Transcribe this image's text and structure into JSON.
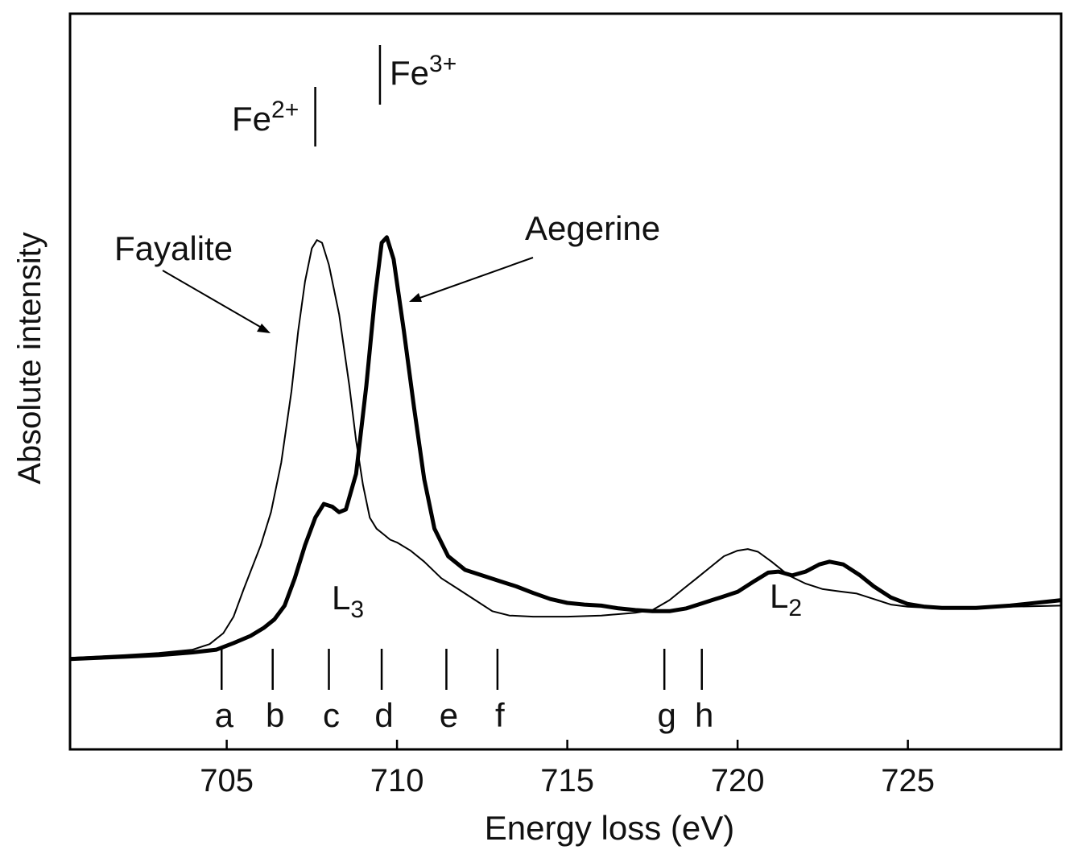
{
  "chart_data": {
    "type": "line",
    "title": "",
    "xlabel": "Energy loss (eV)",
    "ylabel": "Absolute intensity",
    "xlim": [
      700.4,
      729.5
    ],
    "ylim": [
      0,
      1.18
    ],
    "xticks": [
      705,
      710,
      715,
      720,
      725
    ],
    "y_ticks_shown": false,
    "grid": false,
    "series": [
      {
        "name": "Fayalite",
        "line": "thin",
        "points": [
          [
            700.4,
            0.165
          ],
          [
            702,
            0.17
          ],
          [
            703,
            0.174
          ],
          [
            704,
            0.18
          ],
          [
            704.5,
            0.19
          ],
          [
            704.9,
            0.21
          ],
          [
            705.2,
            0.24
          ],
          [
            705.5,
            0.29
          ],
          [
            706,
            0.37
          ],
          [
            706.3,
            0.43
          ],
          [
            706.6,
            0.52
          ],
          [
            706.9,
            0.65
          ],
          [
            707.1,
            0.76
          ],
          [
            707.3,
            0.85
          ],
          [
            707.5,
            0.91
          ],
          [
            707.65,
            0.925
          ],
          [
            707.8,
            0.92
          ],
          [
            708,
            0.88
          ],
          [
            708.3,
            0.79
          ],
          [
            708.6,
            0.66
          ],
          [
            708.8,
            0.56
          ],
          [
            709,
            0.48
          ],
          [
            709.2,
            0.42
          ],
          [
            709.4,
            0.4
          ],
          [
            709.6,
            0.39
          ],
          [
            709.8,
            0.38
          ],
          [
            710,
            0.375
          ],
          [
            710.4,
            0.36
          ],
          [
            710.8,
            0.34
          ],
          [
            711.3,
            0.31
          ],
          [
            711.8,
            0.29
          ],
          [
            712.3,
            0.27
          ],
          [
            712.8,
            0.25
          ],
          [
            713.3,
            0.242
          ],
          [
            714,
            0.24
          ],
          [
            715,
            0.24
          ],
          [
            716,
            0.242
          ],
          [
            717,
            0.247
          ],
          [
            717.5,
            0.252
          ],
          [
            718,
            0.27
          ],
          [
            718.4,
            0.29
          ],
          [
            718.8,
            0.31
          ],
          [
            719.2,
            0.33
          ],
          [
            719.6,
            0.35
          ],
          [
            720,
            0.36
          ],
          [
            720.3,
            0.363
          ],
          [
            720.6,
            0.358
          ],
          [
            721,
            0.34
          ],
          [
            721.5,
            0.315
          ],
          [
            722,
            0.3
          ],
          [
            722.5,
            0.29
          ],
          [
            723,
            0.286
          ],
          [
            723.5,
            0.282
          ],
          [
            724,
            0.272
          ],
          [
            724.5,
            0.262
          ],
          [
            725,
            0.258
          ],
          [
            726,
            0.255
          ],
          [
            727,
            0.257
          ],
          [
            728,
            0.258
          ],
          [
            729.5,
            0.26
          ]
        ]
      },
      {
        "name": "Aegerine",
        "line": "thick",
        "points": [
          [
            700.4,
            0.163
          ],
          [
            702,
            0.167
          ],
          [
            703,
            0.17
          ],
          [
            704,
            0.175
          ],
          [
            704.7,
            0.18
          ],
          [
            705.2,
            0.192
          ],
          [
            705.7,
            0.205
          ],
          [
            706.1,
            0.22
          ],
          [
            706.4,
            0.235
          ],
          [
            706.7,
            0.26
          ],
          [
            707,
            0.31
          ],
          [
            707.3,
            0.37
          ],
          [
            707.6,
            0.42
          ],
          [
            707.85,
            0.445
          ],
          [
            708.1,
            0.44
          ],
          [
            708.3,
            0.43
          ],
          [
            708.5,
            0.435
          ],
          [
            708.8,
            0.5
          ],
          [
            709.1,
            0.66
          ],
          [
            709.35,
            0.82
          ],
          [
            709.55,
            0.92
          ],
          [
            709.7,
            0.93
          ],
          [
            709.9,
            0.89
          ],
          [
            710.2,
            0.76
          ],
          [
            710.5,
            0.62
          ],
          [
            710.8,
            0.49
          ],
          [
            711.1,
            0.4
          ],
          [
            711.5,
            0.35
          ],
          [
            712,
            0.325
          ],
          [
            712.5,
            0.315
          ],
          [
            713,
            0.305
          ],
          [
            713.5,
            0.295
          ],
          [
            714,
            0.283
          ],
          [
            714.5,
            0.272
          ],
          [
            715,
            0.265
          ],
          [
            715.5,
            0.262
          ],
          [
            716,
            0.26
          ],
          [
            716.5,
            0.255
          ],
          [
            717,
            0.252
          ],
          [
            717.5,
            0.25
          ],
          [
            718,
            0.25
          ],
          [
            718.5,
            0.255
          ],
          [
            719,
            0.265
          ],
          [
            719.5,
            0.275
          ],
          [
            720,
            0.285
          ],
          [
            720.5,
            0.305
          ],
          [
            720.9,
            0.32
          ],
          [
            721.2,
            0.322
          ],
          [
            721.6,
            0.315
          ],
          [
            722,
            0.322
          ],
          [
            722.4,
            0.335
          ],
          [
            722.7,
            0.34
          ],
          [
            723.1,
            0.335
          ],
          [
            723.6,
            0.315
          ],
          [
            724,
            0.295
          ],
          [
            724.5,
            0.275
          ],
          [
            725,
            0.263
          ],
          [
            725.5,
            0.258
          ],
          [
            726,
            0.256
          ],
          [
            727,
            0.256
          ],
          [
            728,
            0.26
          ],
          [
            729.5,
            0.27
          ]
        ]
      }
    ],
    "labels": {
      "fayalite": "Fayalite",
      "aegerine": "Aegerine",
      "fe2": {
        "base": "Fe",
        "sup": "2+",
        "energy": 707.6
      },
      "fe3": {
        "base": "Fe",
        "sup": "3+",
        "energy": 709.5
      },
      "l3": {
        "base": "L",
        "sub": "3"
      },
      "l2": {
        "base": "L",
        "sub": "2"
      }
    },
    "markers": [
      {
        "label": "a",
        "energy": 704.85
      },
      {
        "label": "b",
        "energy": 706.35
      },
      {
        "label": "c",
        "energy": 708.0
      },
      {
        "label": "d",
        "energy": 709.55
      },
      {
        "label": "e",
        "energy": 711.45
      },
      {
        "label": "f",
        "energy": 712.95
      },
      {
        "label": "g",
        "energy": 717.85
      },
      {
        "label": "h",
        "energy": 718.95
      }
    ]
  }
}
